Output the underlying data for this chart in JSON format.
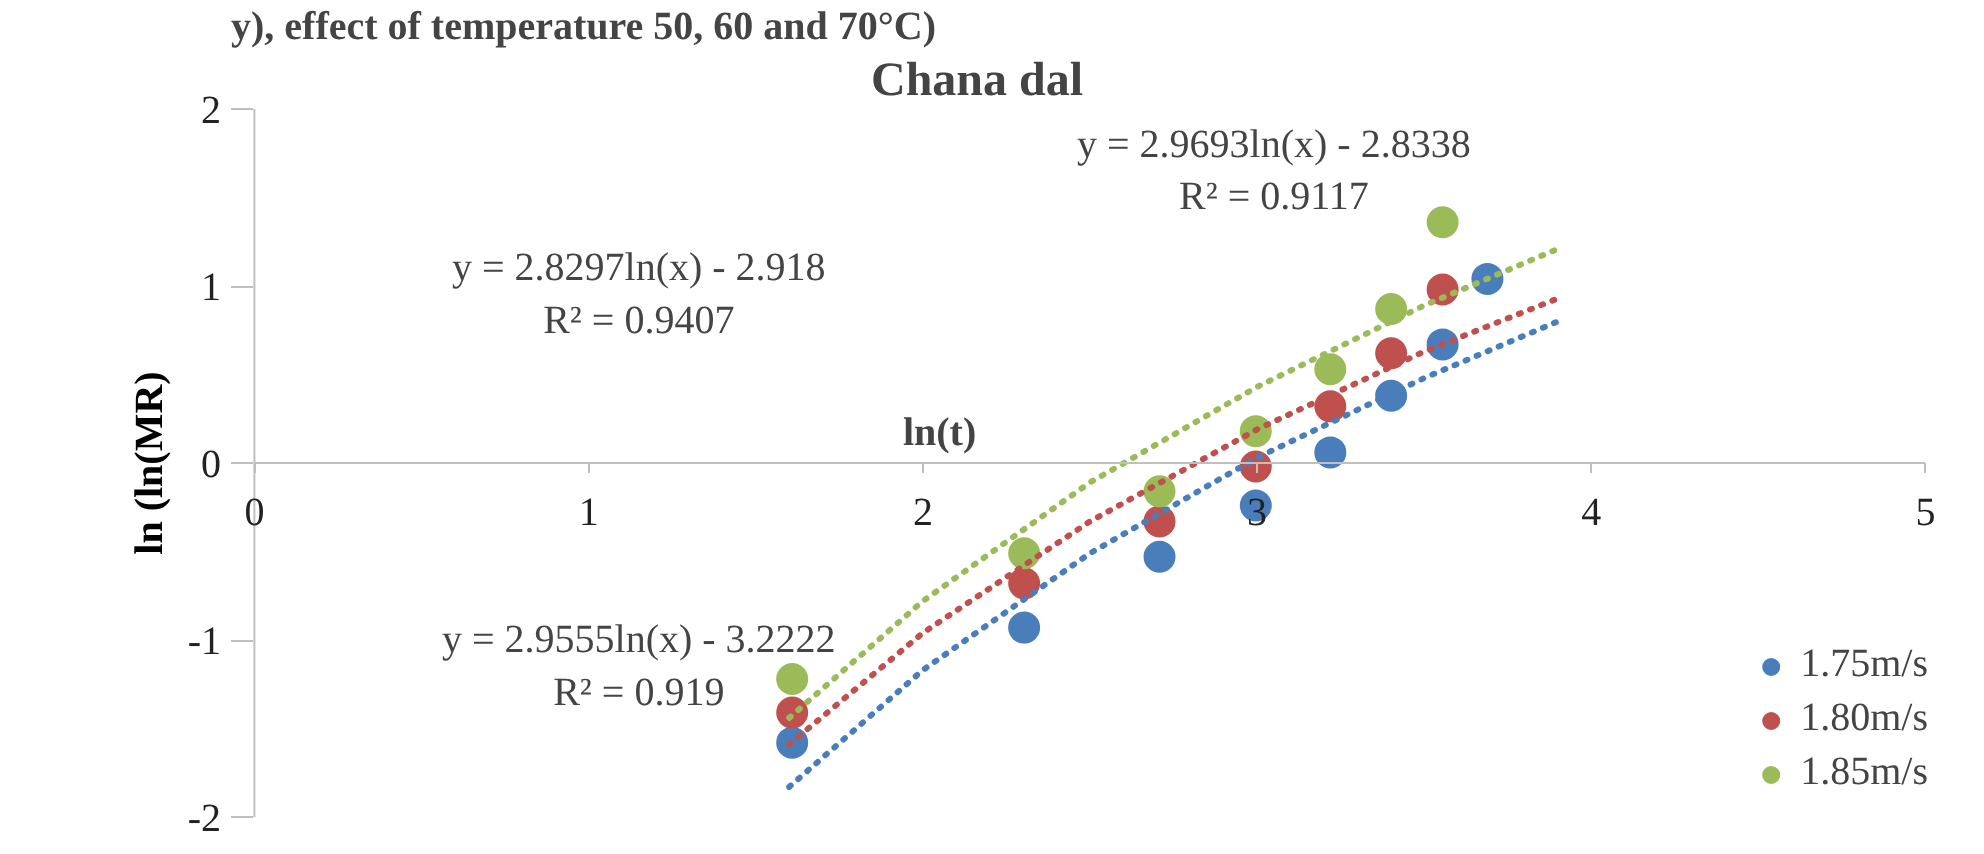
{
  "chart_data": {
    "type": "scatter",
    "title": "Chana dal",
    "xlabel": "ln(t)",
    "ylabel": "ln (ln(MR)",
    "annotations": [
      "y), effect of temperature 50, 60 and 70°C)",
      "y = 2.9693ln(x) - 2.8338\nR² = 0.9117",
      "y = 2.8297ln(x) - 2.918\nR² = 0.9407",
      "y = 2.9555ln(x) - 3.2222\nR² = 0.919"
    ],
    "xlim": [
      0,
      5
    ],
    "xticks": [
      0,
      1,
      2,
      3,
      4,
      5
    ],
    "ylim": [
      -2,
      2
    ],
    "yticks": [
      -2,
      -1,
      0,
      1,
      2
    ],
    "grid": false,
    "legend": "bottom right",
    "marker": "circle",
    "series": [
      {
        "name": "1.75m/s",
        "color": "#4a7ebb",
        "x": [
          1.609,
          2.303,
          2.708,
          2.996,
          3.219,
          3.401,
          3.555,
          3.689
        ],
        "values": [
          -1.58,
          -0.93,
          -0.53,
          -0.24,
          0.06,
          0.38,
          0.67,
          1.04
        ]
      },
      {
        "name": "1.80m/s",
        "color": "#c0504d",
        "x": [
          1.609,
          2.303,
          2.708,
          2.996,
          3.219,
          3.401,
          3.555
        ],
        "values": [
          -1.41,
          -0.68,
          -0.33,
          -0.02,
          0.32,
          0.62,
          0.98
        ]
      },
      {
        "name": "1.85m/s",
        "color": "#9bbb59",
        "x": [
          1.609,
          2.303,
          2.708,
          2.996,
          3.219,
          3.401,
          3.555
        ],
        "values": [
          -1.22,
          -0.51,
          -0.16,
          0.18,
          0.53,
          0.87,
          1.36
        ]
      },
      {
        "type": "line",
        "line_style": "dotted",
        "marker": "none",
        "color": "#4a7ebb",
        "x": [
          1.6,
          2.0,
          2.5,
          3.0,
          3.5,
          3.9
        ],
        "values": [
          -1.83,
          -1.17,
          -0.51,
          0.03,
          0.48,
          0.8
        ]
      },
      {
        "type": "line",
        "line_style": "dotted",
        "marker": "none",
        "color": "#c0504d",
        "x": [
          1.6,
          2.0,
          2.5,
          3.0,
          3.5,
          3.9
        ],
        "values": [
          -1.59,
          -0.96,
          -0.33,
          0.19,
          0.63,
          0.93
        ]
      },
      {
        "type": "line",
        "line_style": "dotted",
        "marker": "none",
        "color": "#9bbb59",
        "x": [
          1.6,
          2.0,
          2.5,
          3.0,
          3.5,
          3.9
        ],
        "values": [
          -1.44,
          -0.78,
          -0.11,
          0.43,
          0.89,
          1.21
        ]
      }
    ]
  }
}
